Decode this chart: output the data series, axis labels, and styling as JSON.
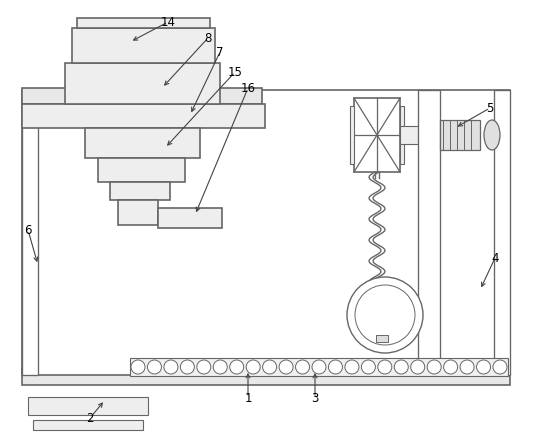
{
  "bg_color": "#ffffff",
  "lc": "#666666",
  "lw": 1.0,
  "fig_w": 5.34,
  "fig_h": 4.4,
  "dpi": 100
}
